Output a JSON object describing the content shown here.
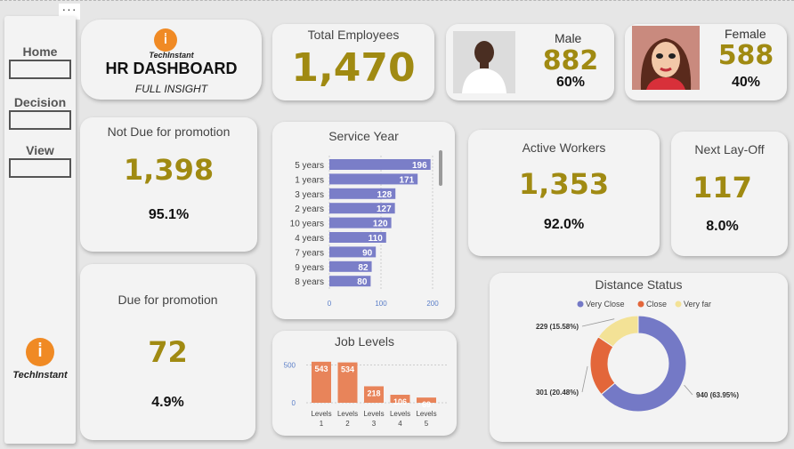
{
  "colors": {
    "gold": "#a08a12",
    "bar_blue": "#7a7ec8",
    "bar_orange": "#e8845a",
    "very_close": "#7479c6",
    "close": "#e3663a",
    "very_far": "#f3e296"
  },
  "toolbar": {
    "more_icon": "more-horizontal-icon",
    "more_label": "···"
  },
  "nav": {
    "items": [
      {
        "label": "Home"
      },
      {
        "label": "Decision"
      },
      {
        "label": "View"
      }
    ],
    "logo_text": "TechInstant"
  },
  "header": {
    "logo_text": "TechInstant",
    "title": "HR DASHBOARD",
    "subtitle": "FULL INSIGHT"
  },
  "total_employees": {
    "title": "Total Employees",
    "value": "1,470"
  },
  "male": {
    "label": "Male",
    "value": "882",
    "pct": "60%",
    "photo_icon": "male-portrait-photo"
  },
  "female": {
    "label": "Female",
    "value": "588",
    "pct": "40%",
    "photo_icon": "female-avatar-illustration"
  },
  "not_due": {
    "title": "Not Due for promotion",
    "value": "1,398",
    "pct": "95.1%"
  },
  "due": {
    "title": "Due for promotion",
    "value": "72",
    "pct": "4.9%"
  },
  "active": {
    "title": "Active Workers",
    "value": "1,353",
    "pct": "92.0%"
  },
  "layoff": {
    "title": "Next Lay-Off",
    "value": "117",
    "pct": "8.0%"
  },
  "chart_data": [
    {
      "type": "bar",
      "orientation": "horizontal",
      "title": "Service Year",
      "categories": [
        "5 years",
        "1 years",
        "3 years",
        "2 years",
        "10 years",
        "4 years",
        "7 years",
        "9 years",
        "8 years"
      ],
      "values": [
        196,
        171,
        128,
        127,
        120,
        110,
        90,
        82,
        80
      ],
      "xlim": [
        0,
        200
      ],
      "xticks": [
        0,
        100,
        200
      ]
    },
    {
      "type": "bar",
      "title": "Job Levels",
      "categories": [
        "Levels 1",
        "Levels 2",
        "Levels 3",
        "Levels 4",
        "Levels 5"
      ],
      "values": [
        543,
        534,
        218,
        106,
        69
      ],
      "ylim": [
        0,
        600
      ],
      "yticks": [
        0,
        500
      ]
    },
    {
      "type": "pie",
      "donut": true,
      "title": "Distance Status",
      "legend_position": "top",
      "slices": [
        {
          "name": "Very Close",
          "value": 940,
          "label": "940 (63.95%)"
        },
        {
          "name": "Close",
          "value": 301,
          "label": "301 (20.48%)"
        },
        {
          "name": "Very far",
          "value": 229,
          "label": "229 (15.58%)"
        }
      ]
    }
  ]
}
